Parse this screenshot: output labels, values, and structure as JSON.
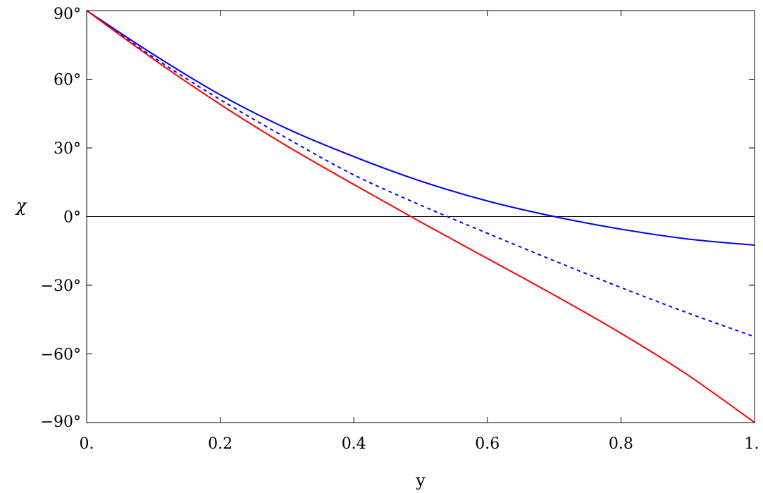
{
  "chart_data": {
    "type": "line",
    "title": "",
    "xlabel": "y",
    "ylabel": "χ",
    "xlim": [
      0,
      1
    ],
    "ylim": [
      -90,
      90
    ],
    "grid": false,
    "x_ticks": [
      0,
      0.2,
      0.4,
      0.6,
      0.8,
      1
    ],
    "x_tick_labels": [
      "0.",
      "0.2",
      "0.4",
      "0.6",
      "0.8",
      "1."
    ],
    "y_ticks": [
      -90,
      -60,
      -30,
      0,
      30,
      60,
      90
    ],
    "y_tick_labels": [
      "−90°",
      "−60°",
      "−30°",
      "0°",
      "30°",
      "60°",
      "90°"
    ],
    "reference_line": {
      "y": 0,
      "color": "#000000"
    },
    "series": [
      {
        "color": "#0000ff",
        "style": "solid",
        "x": [
          0,
          0.1,
          0.2,
          0.3,
          0.4,
          0.5,
          0.6,
          0.7,
          0.8,
          0.9,
          1.0
        ],
        "y": [
          90,
          70.8,
          53.2,
          38.4,
          26.2,
          15.5,
          6.8,
          0,
          -5.5,
          -9.8,
          -12.5
        ]
      },
      {
        "color": "#0000ff",
        "style": "dashed",
        "x": [
          0,
          0.1,
          0.2,
          0.3,
          0.4,
          0.5,
          0.6,
          0.7,
          0.8,
          0.9,
          1.0
        ],
        "y": [
          90,
          69.6,
          51.1,
          34.2,
          18.2,
          5.0,
          -7.3,
          -19.3,
          -31.0,
          -42.1,
          -52.5
        ]
      },
      {
        "color": "#ff0000",
        "style": "solid",
        "x": [
          0,
          0.1,
          0.2,
          0.3,
          0.4,
          0.5,
          0.6,
          0.7,
          0.8,
          0.9,
          1.0
        ],
        "y": [
          90,
          68.8,
          49.0,
          30.8,
          14.0,
          -2.4,
          -18.3,
          -34.3,
          -51.0,
          -69.2,
          -90
        ]
      }
    ]
  }
}
